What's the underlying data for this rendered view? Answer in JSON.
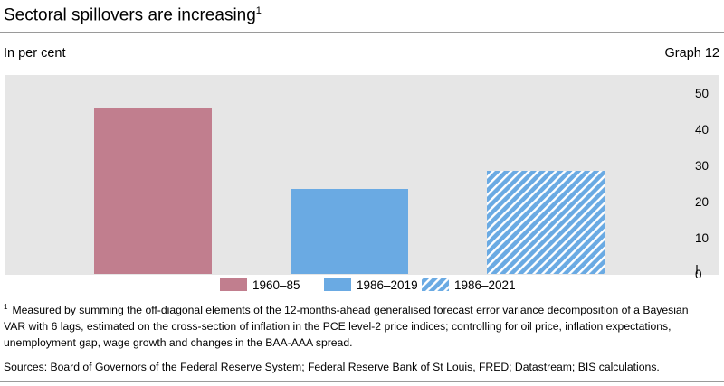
{
  "header": {
    "title": "Sectoral spillovers are increasing",
    "title_note": "1",
    "unit": "In per cent",
    "graph_number": "Graph 12"
  },
  "chart_data": {
    "type": "bar",
    "categories": [
      "1960–85",
      "1986–2019",
      "1986–2021"
    ],
    "values": [
      46,
      23.5,
      28.5
    ],
    "series": [
      {
        "name": "1960–85",
        "value": 46,
        "color": "#c17e8e",
        "pattern": "solid"
      },
      {
        "name": "1986–2019",
        "value": 23.5,
        "color": "#6aaae3",
        "pattern": "solid"
      },
      {
        "name": "1986–2021",
        "value": 28.5,
        "color": "#6aaae3",
        "pattern": "hatched"
      }
    ],
    "ylim": [
      0,
      55
    ],
    "yticks": [
      0,
      10,
      20,
      30,
      40,
      50
    ],
    "axis_side": "right",
    "xlabel": "",
    "ylabel": "",
    "legend_position": "bottom",
    "colors": {
      "background": "#e6e6e6",
      "axis": "#000000"
    }
  },
  "footnotes": {
    "marker": "1",
    "line1": "Measured by summing the off-diagonal elements of the 12-months-ahead generalised forecast error variance decomposition of a Bayesian",
    "line2": "VAR with 6 lags, estimated on the cross-section of inflation in the PCE level-2 price indices; controlling for oil price, inflation expectations,",
    "line3": "unemployment gap, wage growth and changes in the BAA-AAA spread.",
    "sources": "Sources: Board of Governors of the Federal Reserve System; Federal Reserve Bank of St Louis, FRED; Datastream; BIS calculations."
  }
}
